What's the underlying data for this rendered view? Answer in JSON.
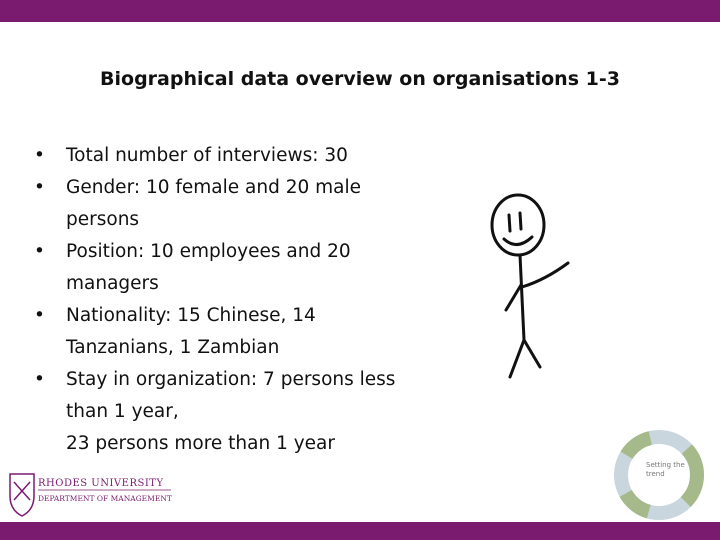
{
  "slide": {
    "title": "Biographical data overview on organisations 1-3",
    "bullets": [
      {
        "lines": [
          "Total number of interviews: 30"
        ]
      },
      {
        "lines": [
          "Gender: 10 female and 20 male",
          "persons"
        ]
      },
      {
        "lines": [
          "Position: 10 employees and 20",
          "managers"
        ]
      },
      {
        "lines": [
          "Nationality: 15 Chinese, 14",
          "Tanzanians, 1 Zambian"
        ]
      },
      {
        "lines": [
          "Stay in organization: 7 persons less",
          "than 1 year,",
          "23 persons more than 1 year"
        ]
      }
    ],
    "logo": {
      "name": "RHODES UNIVERSITY",
      "department": "DEPARTMENT OF MANAGEMENT"
    },
    "badge": "Setting the trend"
  }
}
